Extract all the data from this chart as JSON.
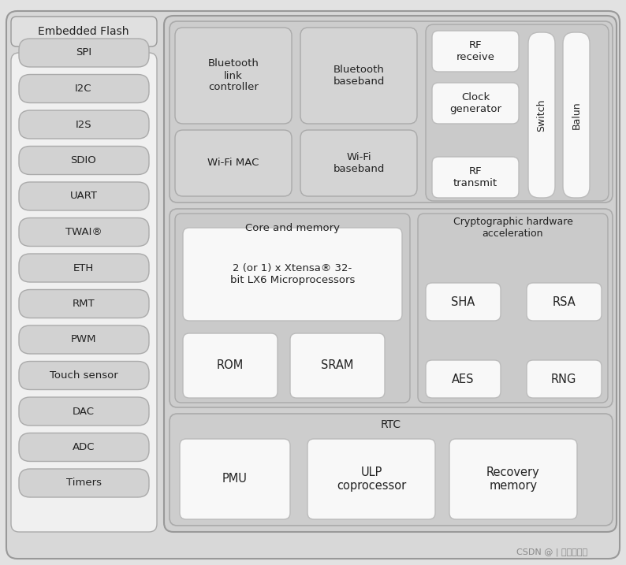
{
  "fig_width": 7.94,
  "fig_height": 7.17,
  "dpi": 100,
  "bg_color": "#e2e2e2",
  "outer_fill": "#d8d8d8",
  "outer_edge": "#999999",
  "section_fill": "#cdcdcd",
  "section_edge": "#aaaaaa",
  "panel_fill": "#d4d4d4",
  "panel_edge": "#aaaaaa",
  "white_fill": "#f8f8f8",
  "white_edge": "#bbbbbb",
  "left_bg_fill": "#f0f0f0",
  "left_bg_edge": "#aaaaaa",
  "item_fill": "#d2d2d2",
  "item_edge": "#aaaaaa",
  "ef_fill": "#e0e0e0",
  "ef_edge": "#999999",
  "text_color": "#222222",
  "watermark": "CSDN @ | 匿名用户丨",
  "watermark_color": "#888888",
  "left_panel_items": [
    "SPI",
    "I2C",
    "I2S",
    "SDIO",
    "UART",
    "TWAI®",
    "ETH",
    "RMT",
    "PWM",
    "Touch sensor",
    "DAC",
    "ADC",
    "Timers"
  ],
  "embedded_flash": "Embedded Flash"
}
